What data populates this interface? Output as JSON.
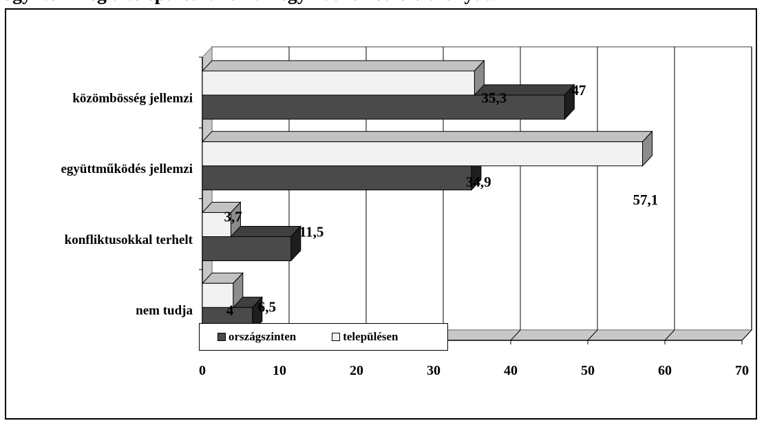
{
  "header": {
    "title": "ogy ítéli meg a település lakóinak egymáshoz való viszonyát?"
  },
  "chart_data": {
    "type": "bar",
    "orientation": "horizontal",
    "title": "ogy ítéli meg a település lakóinak egymáshoz való viszonyát?",
    "categories": [
      "közömbösség jellemzi",
      "együttműködés jellemzi",
      "konfliktusokkal terhelt",
      "nem tudja"
    ],
    "series": [
      {
        "name": "országszinten",
        "color": "#4a4a4a",
        "values": [
          47,
          34.9,
          11.5,
          6.5
        ],
        "labels": [
          "47",
          "34,9",
          "11,5",
          "6,5"
        ]
      },
      {
        "name": "településen",
        "color": "#f2f2f2",
        "values": [
          35.3,
          57.1,
          3.7,
          4
        ],
        "labels": [
          "35,3",
          "57,1",
          "3,7",
          "4"
        ]
      }
    ],
    "xlim": [
      0,
      70
    ],
    "xticks": [
      "0",
      "10",
      "20",
      "30",
      "40",
      "50",
      "60",
      "70"
    ],
    "grid": true,
    "legend": "bottom-left"
  }
}
